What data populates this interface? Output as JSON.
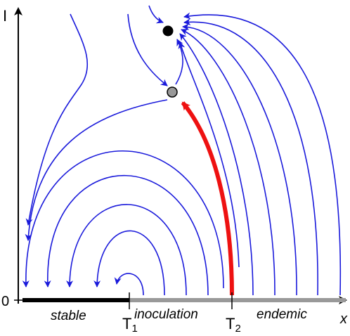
{
  "axes": {
    "y_label": "I",
    "x_label": "x",
    "origin_label": "0"
  },
  "regions": {
    "stable": "stable",
    "inoculation": "inoculation",
    "endemic": "endemic"
  },
  "thresholds": {
    "t1": {
      "base": "T",
      "sub": "1"
    },
    "t2": {
      "base": "T",
      "sub": "2"
    }
  },
  "colors": {
    "flow": "#1a1adb",
    "highlight": "#ee1111",
    "stable_segment": "#000000",
    "unstable_segment": "#999999",
    "stable_point": "#000000",
    "saddle_point": "#999999"
  }
}
